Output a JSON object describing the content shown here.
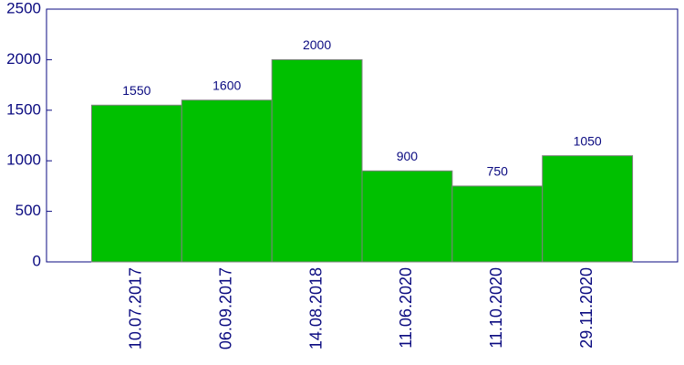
{
  "chart_data": {
    "type": "bar",
    "categories": [
      "10.07.2017",
      "06.09.2017",
      "14.08.2018",
      "11.06.2020",
      "11.10.2020",
      "29.11.2020"
    ],
    "values": [
      1550,
      1600,
      2000,
      900,
      750,
      1050
    ],
    "color": "#00c000",
    "ylim": [
      0,
      2500
    ],
    "yticks": [
      0,
      500,
      1000,
      1500,
      2000,
      2500
    ]
  }
}
